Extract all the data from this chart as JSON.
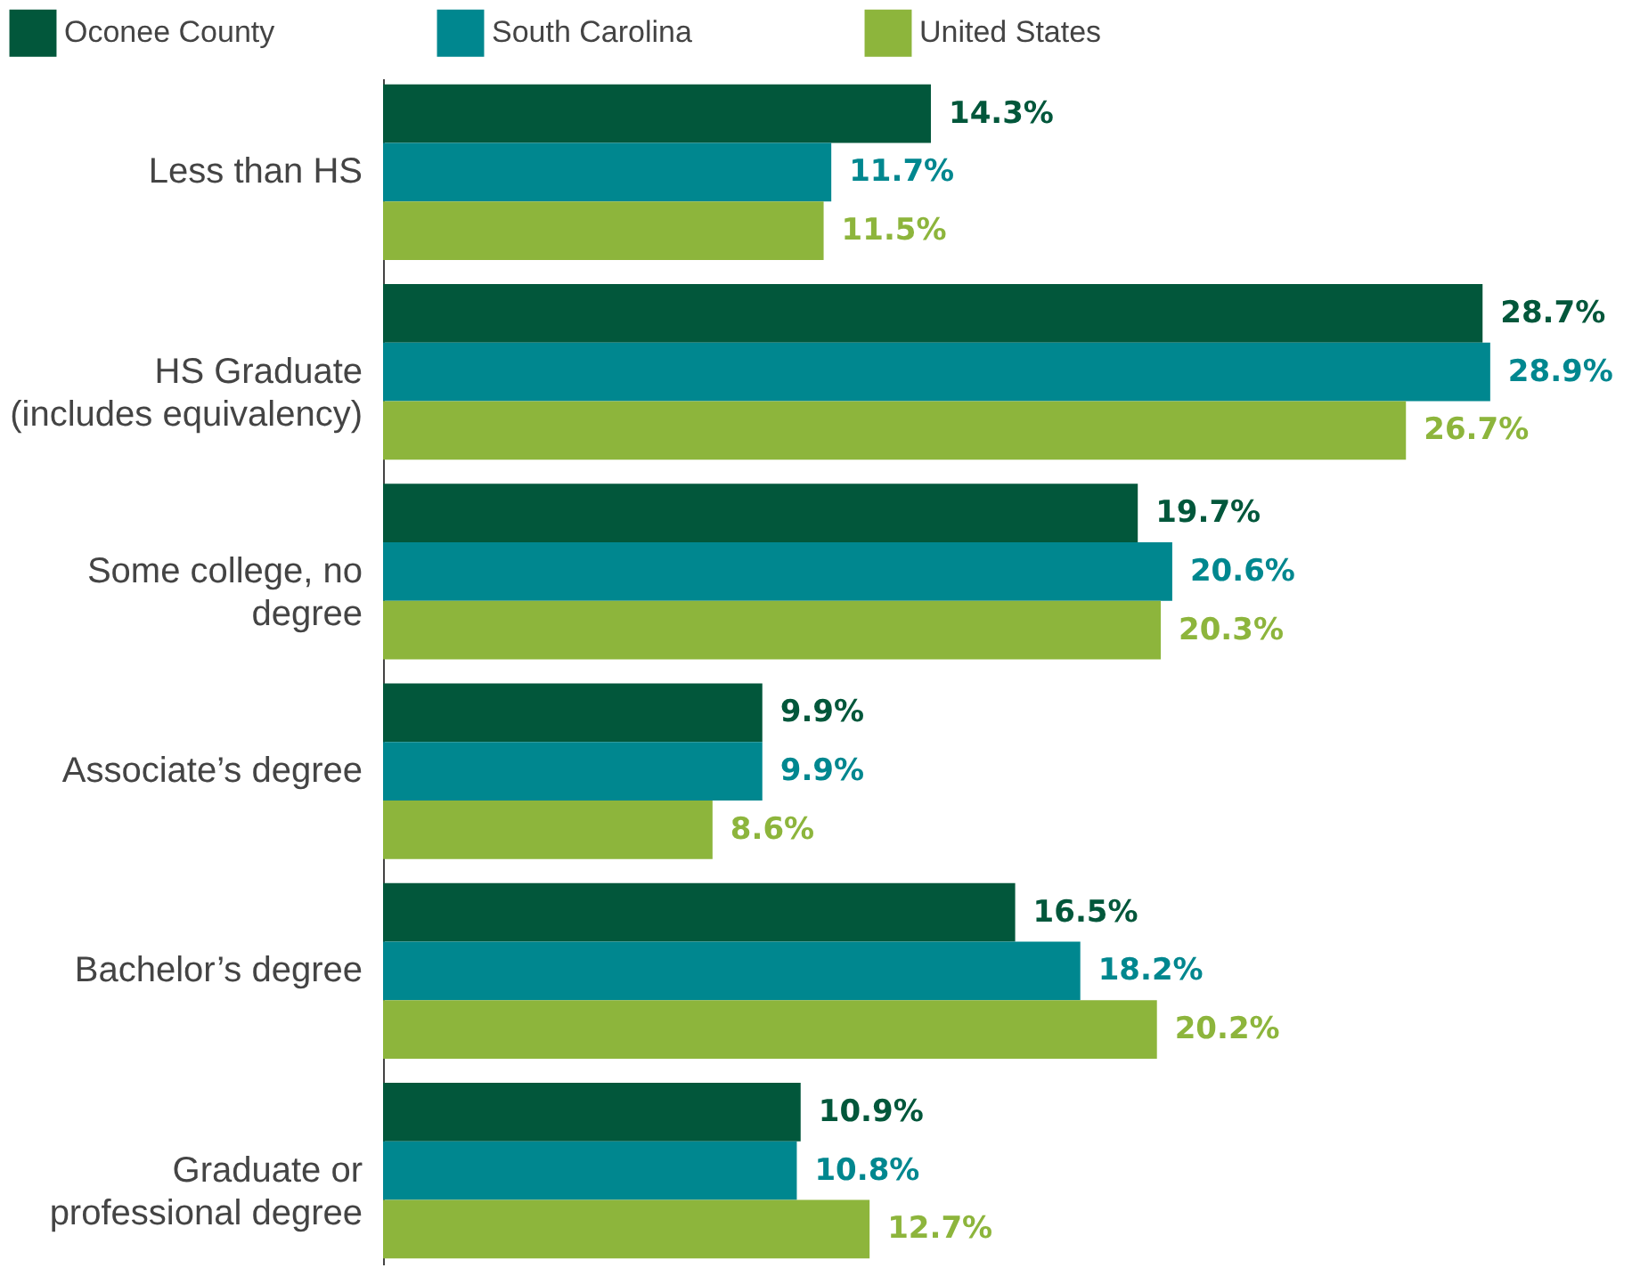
{
  "chart_data": {
    "type": "bar",
    "orientation": "horizontal",
    "legend": "top left",
    "grid": false,
    "categories": [
      "Less than HS",
      "HS Graduate\n(includes equivalency)",
      "Some college, no\ndegree",
      "Associate’s degree",
      "Bachelor’s degree",
      "Graduate or\nprofessional degree"
    ],
    "series": [
      {
        "name": "Oconee County",
        "color": "#02573b",
        "values": [
          14.3,
          28.7,
          19.7,
          9.9,
          16.5,
          10.9
        ],
        "value_labels": [
          "14.3%",
          "28.7%",
          "19.7%",
          "9.9%",
          "16.5%",
          "10.9%"
        ]
      },
      {
        "name": "South Carolina",
        "color": "#00878f",
        "values": [
          11.7,
          28.9,
          20.6,
          9.9,
          18.2,
          10.8
        ],
        "value_labels": [
          "11.7%",
          "28.9%",
          "20.6%",
          "9.9%",
          "18.2%",
          "10.8%"
        ]
      },
      {
        "name": "United States",
        "color": "#8db53c",
        "values": [
          11.5,
          26.7,
          20.3,
          8.6,
          20.2,
          12.7
        ],
        "value_labels": [
          "11.5%",
          "26.7%",
          "20.3%",
          "8.6%",
          "20.2%",
          "12.7%"
        ]
      }
    ]
  }
}
